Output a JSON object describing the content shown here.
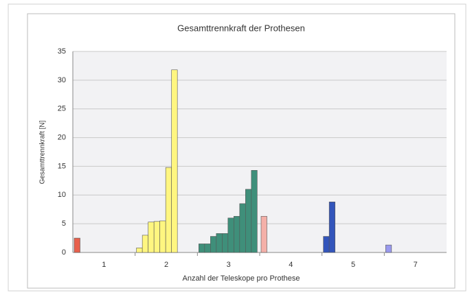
{
  "chart_data": {
    "type": "bar",
    "title": "Gesamttrennkraft der Prothesen",
    "x_label": "Anzahl der Teleskope pro Prothese",
    "y_label": "Gesamttrennkraft [N]",
    "categories": [
      "1",
      "2",
      "3",
      "4",
      "5",
      "7"
    ],
    "colors": [
      "#e8604c",
      "#fff680",
      "#3f8f7a",
      "#f4b0a8",
      "#3355bb",
      "#9999ee"
    ],
    "values": [
      [
        2.5
      ],
      [
        0.8,
        3,
        5.3,
        5.4,
        5.5,
        14.8,
        31.8
      ],
      [
        1.5,
        1.5,
        2.8,
        3.3,
        3.3,
        6,
        6.3,
        8.5,
        11,
        14.3
      ],
      [
        6.3
      ],
      [
        2.8,
        8.8
      ],
      [
        1.3
      ]
    ],
    "ylim": [
      0,
      35
    ],
    "yticks": [
      0,
      5,
      10,
      15,
      20,
      25,
      30,
      35
    ],
    "grid": true
  }
}
